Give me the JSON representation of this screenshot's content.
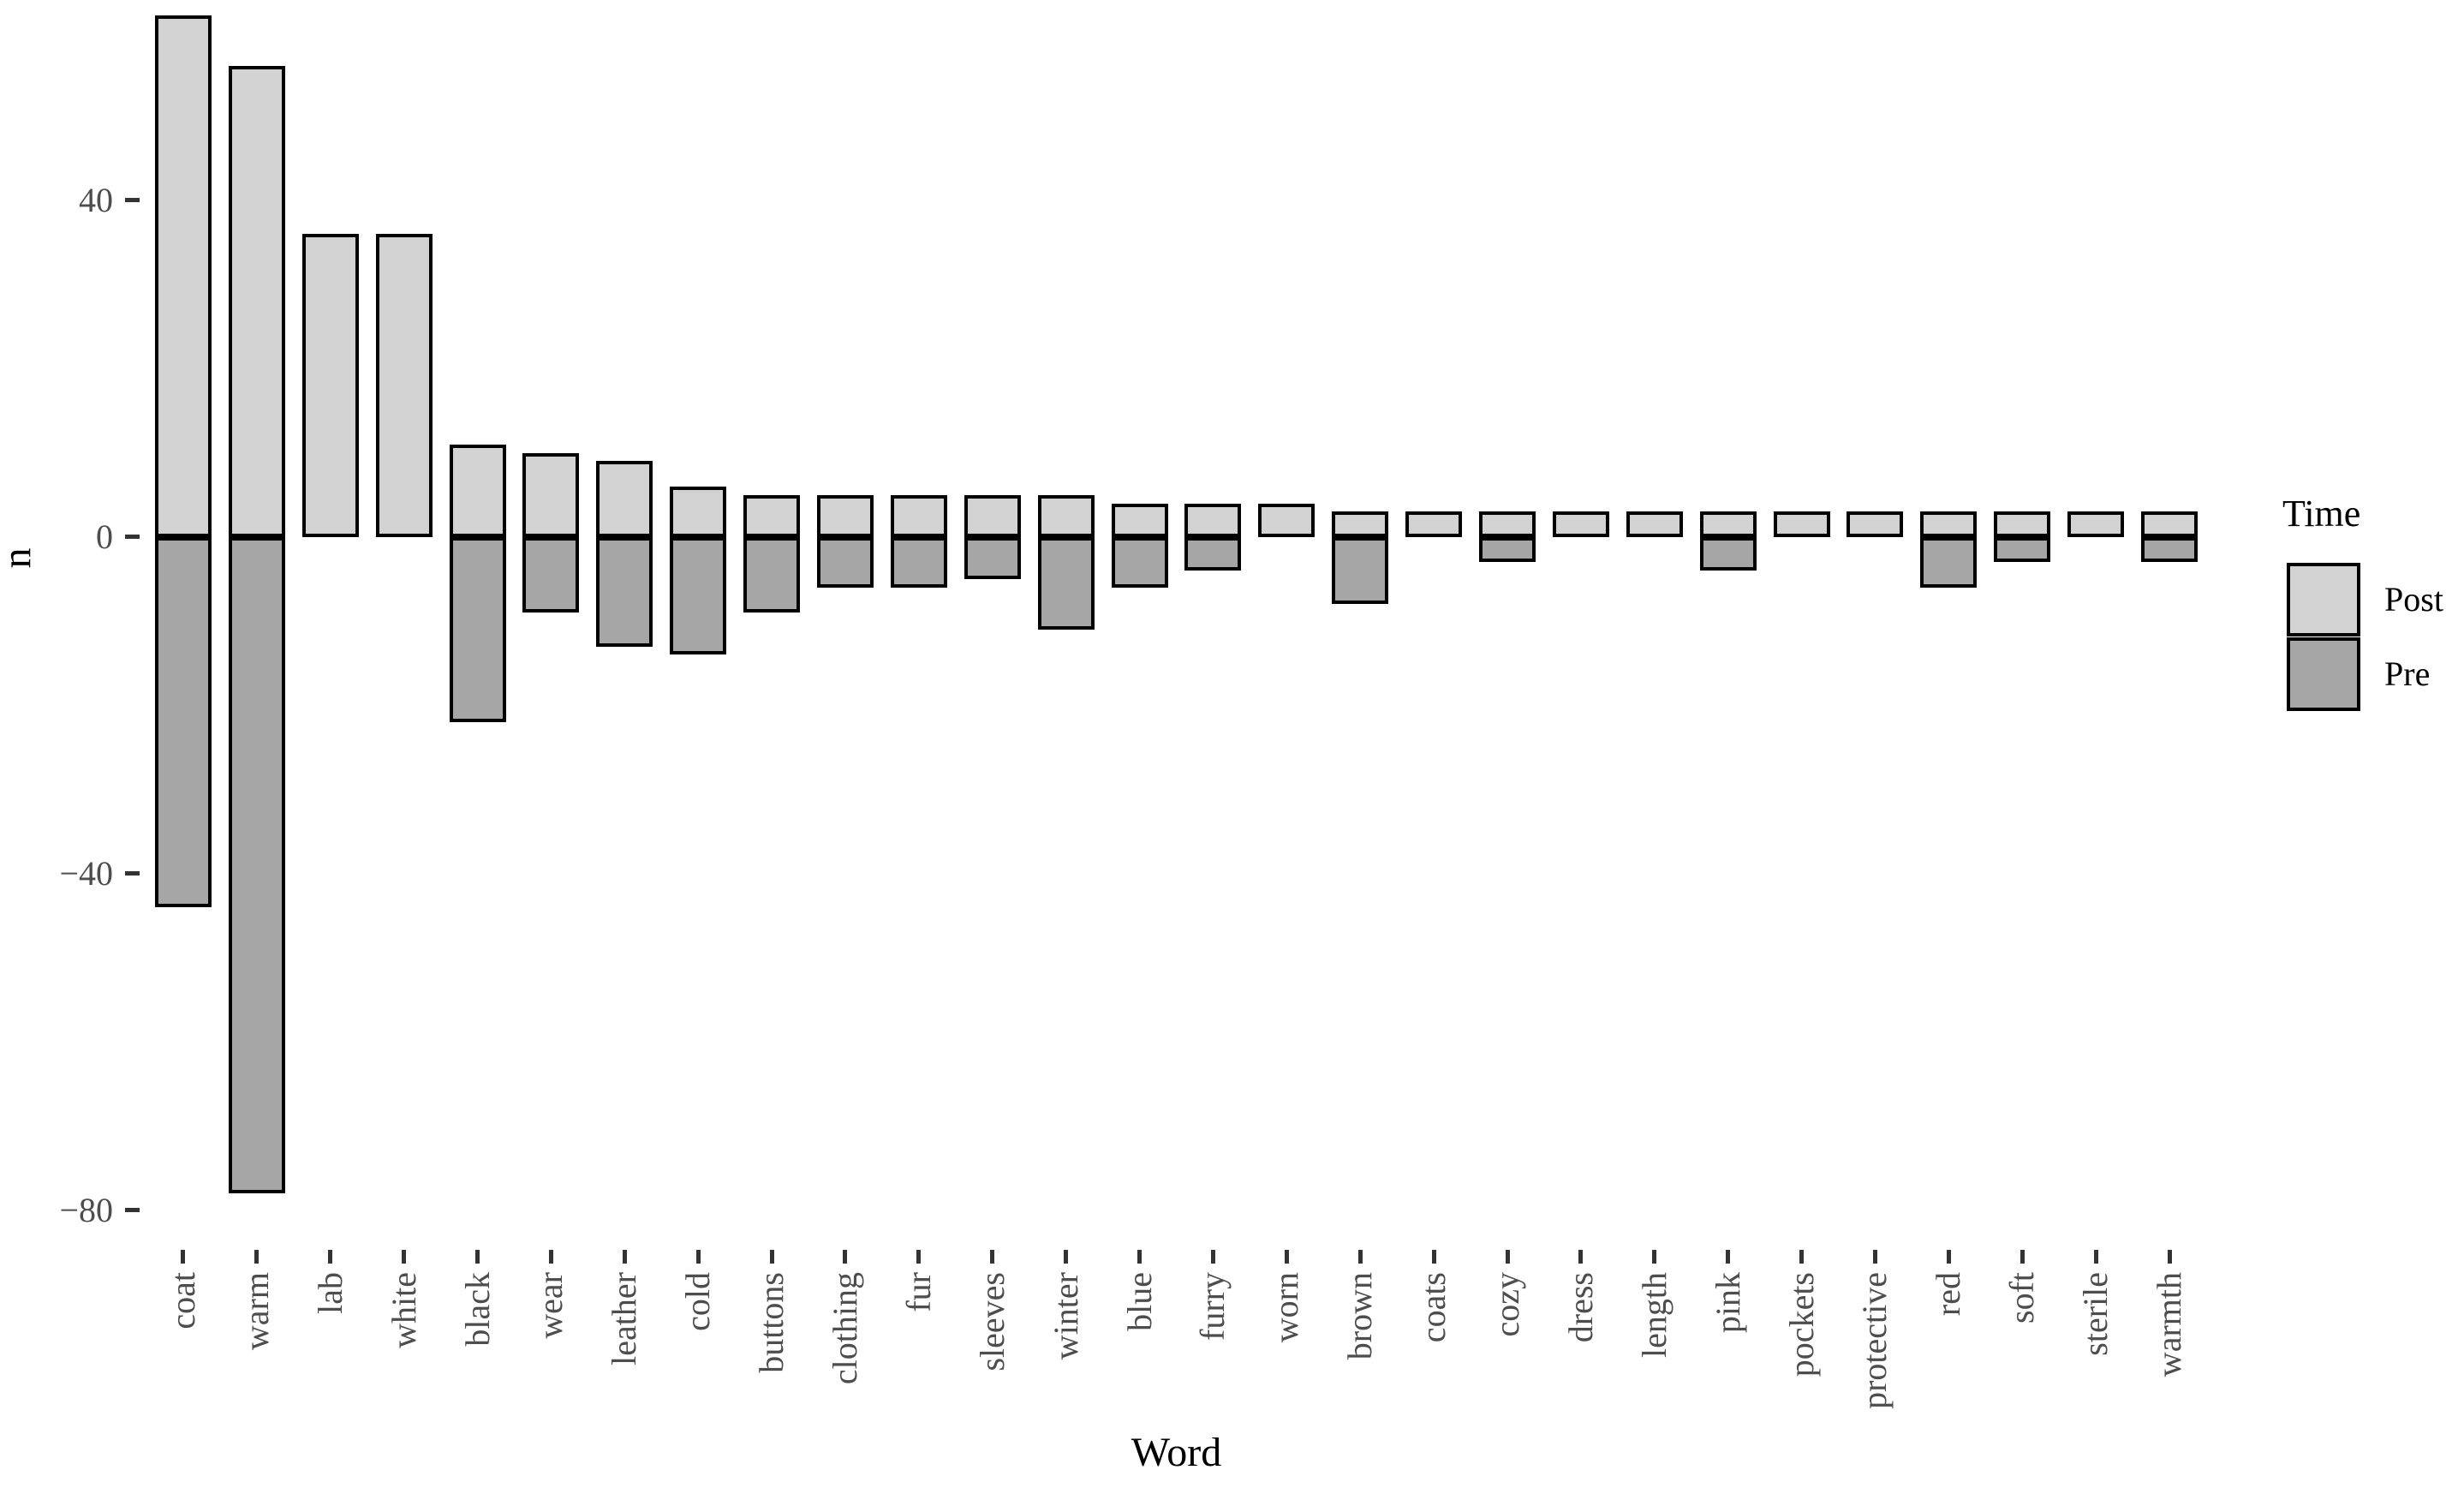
{
  "figure": {
    "background": "#ffffff"
  },
  "axes": {
    "y": {
      "title": "n",
      "tick_labels": [
        "40",
        "0",
        "−40",
        "−80"
      ],
      "tick_values": [
        40,
        0,
        -40,
        -80
      ]
    },
    "x": {
      "title": "Word"
    }
  },
  "legend": {
    "title": "Time",
    "items": [
      {
        "label": "Post",
        "color": "#d2d2d2"
      },
      {
        "label": "Pre",
        "color": "#a6a6a6"
      }
    ]
  },
  "colors": {
    "post_fill": "#d2d2d2",
    "pre_fill": "#a6a6a6",
    "bar_border": "#000000",
    "axis_text": "#4d4d4d",
    "tick_mark": "#333333"
  },
  "chart_data": {
    "type": "bar",
    "subtype": "diverging-stacked-vertical",
    "title": "",
    "xlabel": "Word",
    "ylabel": "n",
    "categories": [
      "coat",
      "warm",
      "lab",
      "white",
      "black",
      "wear",
      "leather",
      "cold",
      "buttons",
      "clothing",
      "fur",
      "sleeves",
      "winter",
      "blue",
      "furry",
      "worn",
      "brown",
      "coats",
      "cozy",
      "dress",
      "length",
      "pink",
      "pockets",
      "protective",
      "red",
      "soft",
      "sterile",
      "warmth"
    ],
    "series": [
      {
        "name": "Post",
        "values": [
          62,
          56,
          36,
          36,
          11,
          10,
          9,
          6,
          5,
          5,
          5,
          5,
          5,
          4,
          4,
          4,
          3,
          3,
          3,
          3,
          3,
          3,
          3,
          3,
          3,
          3,
          3,
          3
        ]
      },
      {
        "name": "Pre",
        "values": [
          -44,
          -78,
          0,
          0,
          -22,
          -9,
          -13,
          -14,
          -9,
          -6,
          -6,
          -5,
          -11,
          -6,
          -4,
          0,
          -8,
          0,
          -3,
          0,
          0,
          -4,
          0,
          0,
          -6,
          -3,
          0,
          -3
        ]
      }
    ],
    "ylim": [
      -84.3,
      63.8
    ],
    "yticks": [
      40,
      0,
      -40,
      -80
    ],
    "grid": false,
    "panel_border": false,
    "legend_position": "right"
  }
}
